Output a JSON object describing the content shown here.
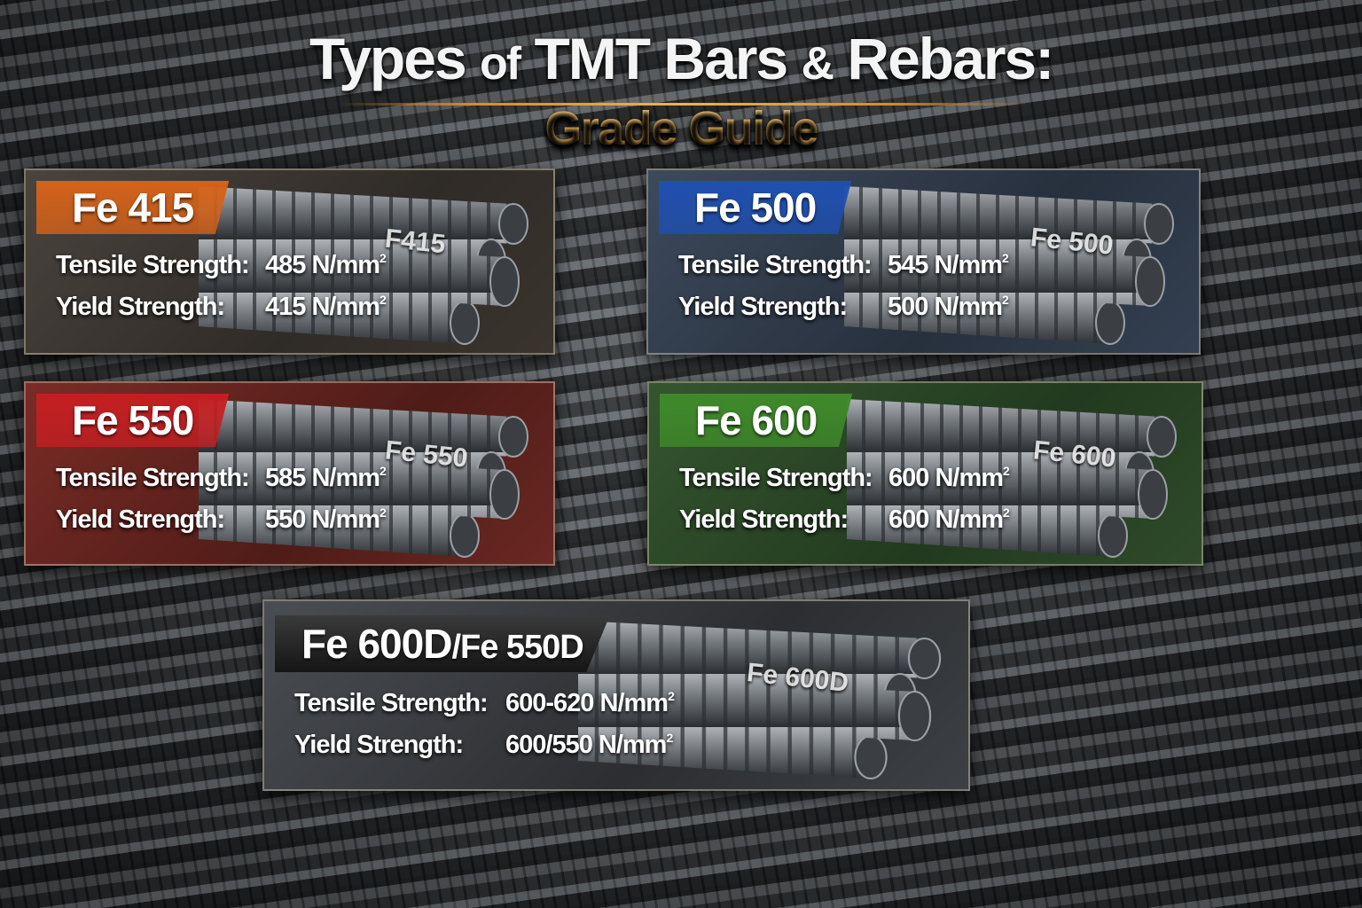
{
  "header": {
    "title_part1": "Types",
    "title_part2": "of",
    "title_part3": "TMT Bars",
    "title_part4": "&",
    "title_part5": "Rebars:",
    "subtitle": "Grade Guide"
  },
  "labels": {
    "tensile": "Tensile Strength:",
    "yield": "Yield Strength:",
    "unit": "N/mm",
    "unit_exp": "2"
  },
  "cards": [
    {
      "grade": "Fe 415",
      "bar_marking": "F415",
      "tensile": "485",
      "yield": "415",
      "color": "#d4621a"
    },
    {
      "grade": "Fe 500",
      "bar_marking": "Fe 500",
      "tensile": "545",
      "yield": "500",
      "color": "#1f4fb0"
    },
    {
      "grade": "Fe 550",
      "bar_marking": "Fe 550",
      "tensile": "585",
      "yield": "550",
      "color": "#c41f22"
    },
    {
      "grade": "Fe 600",
      "bar_marking": "Fe 600",
      "tensile": "600",
      "yield": "600",
      "color": "#3f8a2a"
    },
    {
      "grade": "Fe 600D",
      "grade_alt": "Fe 550D",
      "grade_sep": "/",
      "bar_marking": "Fe 600D",
      "tensile": "600-620",
      "yield": "600/550",
      "color": "#2a2a2a"
    }
  ]
}
